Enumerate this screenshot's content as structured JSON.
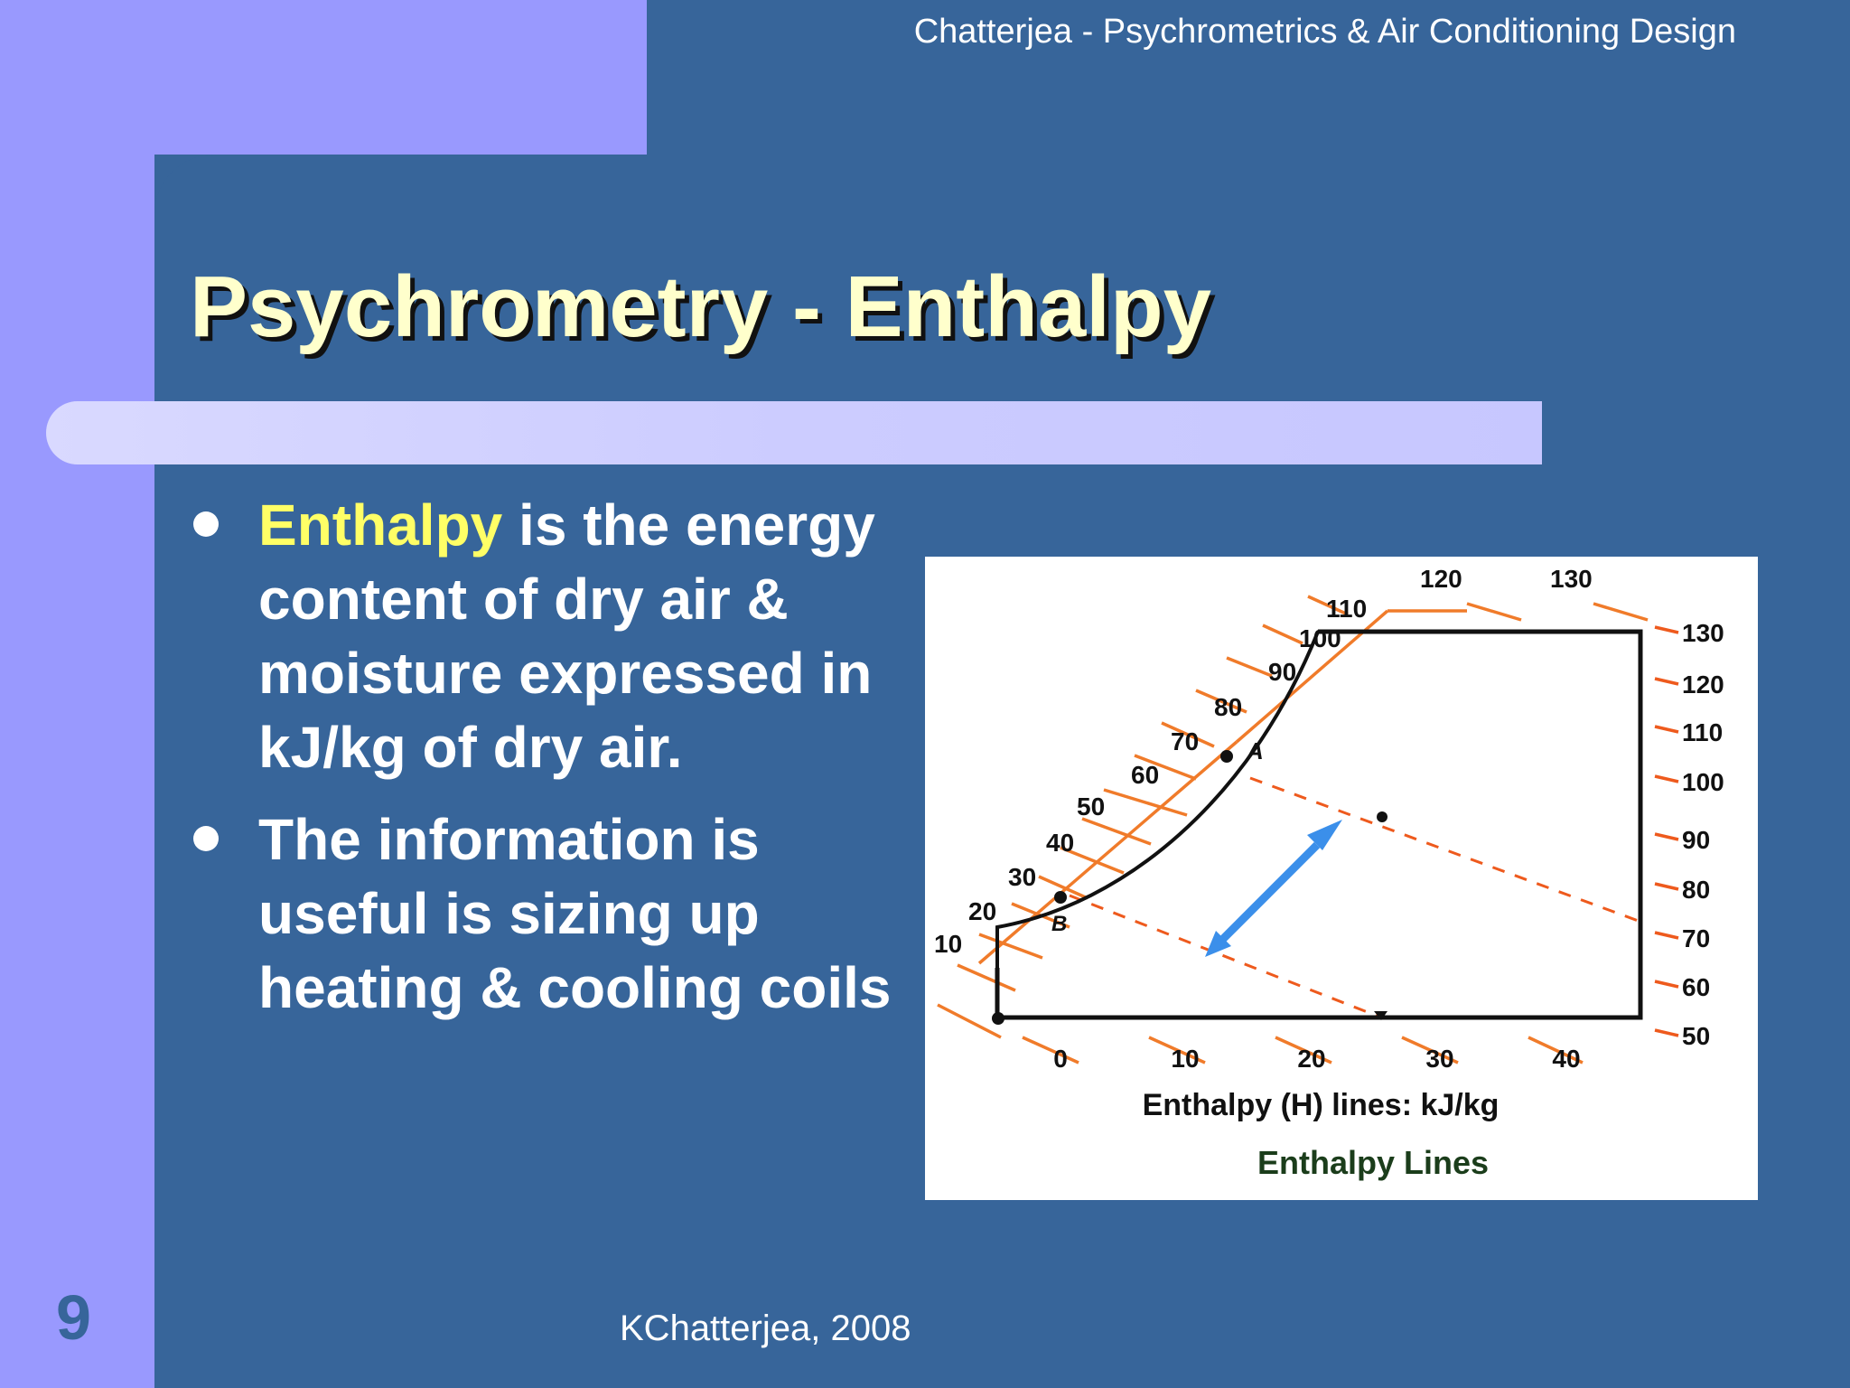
{
  "header": {
    "text": "Chatterjea - Psychrometrics & Air Conditioning Design"
  },
  "slide": {
    "title": "Psychrometry - Enthalpy",
    "bullets": [
      {
        "highlight": "Enthalpy",
        "text": " is the energy content of dry air & moisture expressed in kJ/kg of dry air."
      },
      {
        "highlight": "",
        "text": "The information is useful is sizing up heating & cooling coils"
      }
    ],
    "page_number": "9",
    "footer": "KChatterjea, 2008"
  },
  "figure": {
    "caption": "Enthalpy Lines",
    "axis_label": "Enthalpy (H) lines: kJ/kg",
    "bottom_ticks": [
      "0",
      "10",
      "20",
      "30",
      "40"
    ],
    "right_ticks": [
      "130",
      "120",
      "110",
      "100",
      "90",
      "80",
      "70",
      "60",
      "50"
    ],
    "curve_labels": [
      "10",
      "20",
      "30",
      "40",
      "50",
      "60",
      "70",
      "80",
      "90",
      "100",
      "110"
    ],
    "top_labels": [
      "120",
      "130"
    ],
    "point_a": "A",
    "point_b": "B",
    "colors": {
      "enthalpy_lines": "#f07b2a",
      "arrow": "#3b8fea",
      "outline": "#111111"
    }
  }
}
